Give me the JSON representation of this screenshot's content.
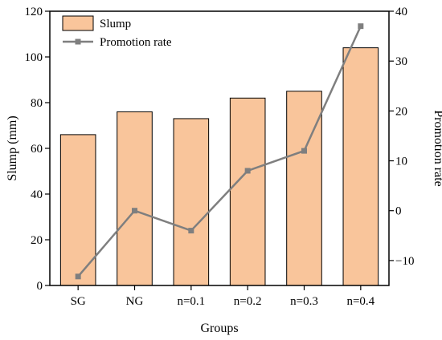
{
  "chart_data": {
    "type": "bar+line",
    "categories": [
      "SG",
      "NG",
      "n=0.1",
      "n=0.2",
      "n=0.3",
      "n=0.4"
    ],
    "series": [
      {
        "name": "Slump",
        "type": "bar",
        "axis": "left",
        "values": [
          66,
          76,
          73,
          82,
          85,
          104
        ],
        "color": "#f9c59b",
        "edge_color": "#000000"
      },
      {
        "name": "Promotion rate",
        "type": "line",
        "axis": "right",
        "values": [
          -13.2,
          0,
          -4,
          8,
          12,
          37
        ],
        "color": "#7f7f7f",
        "marker": "square"
      }
    ],
    "xlabel": "Groups",
    "ylabel": "Slump (mm)",
    "y2label": "Promotion rate",
    "ylim": [
      0,
      120
    ],
    "y2lim": [
      -15,
      40
    ],
    "yticks": [
      0,
      20,
      40,
      60,
      80,
      100,
      120
    ],
    "y2ticks": [
      -10,
      0,
      10,
      20,
      30,
      40
    ],
    "grid": false,
    "legend_position": "top-left"
  }
}
